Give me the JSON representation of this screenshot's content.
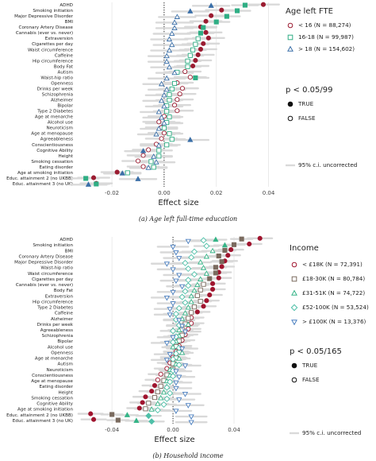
{
  "chart_data": [
    {
      "type": "dot",
      "caption": "(a) Age left full-time education",
      "x_label": "Effect size",
      "legend_title": "Age left FTE",
      "sig_title": "p < 0.05/99",
      "sig_labels": [
        "TRUE",
        "FALSE"
      ],
      "ci_label": "95% c.i. uncorrected",
      "xlim": [
        -0.034,
        0.045
      ],
      "xticks": [
        -0.02,
        {
          "value": 0,
          "label": "0.00"
        },
        0.02,
        0.04
      ],
      "grid": true,
      "zero_line": true,
      "categories": [
        "ADHD",
        "Smoking initiation",
        "Major Depressive Disorder",
        "BMI",
        "Coronary Artery Disease",
        "Cannabis (ever vs. never)",
        "Extraversion",
        "Cigarettes per day",
        "Waist circumference",
        "Caffeine",
        "Hip circumference",
        "Body Fat",
        "Autism",
        "Waist-hip ratio",
        "Openness",
        "Drinks per week",
        "Schizophrenia",
        "Alzheimer",
        "Bipolar",
        "Type 2 Diabetes",
        "Age at menarche",
        "Alcohol use",
        "Neuroticism",
        "Age at menopause",
        "Agreeableness",
        "Conscientiousness",
        "Cognitive Ability",
        "Height",
        "Smoking cessation",
        "Eating disorder",
        "Age at smoking initiation",
        "Educ. attainment 2 (no UKBB)",
        "Educ. attainment 3 (no UK)"
      ],
      "series": [
        {
          "name": "< 16 (N = 88,274)",
          "color": "#9b1c31",
          "marker": "circle",
          "error": 0.006,
          "values": [
            0.038,
            0.022,
            0.018,
            0.016,
            0.014,
            0.016,
            0.017,
            0.015,
            0.014,
            0.013,
            0.012,
            0.011,
            0.008,
            0.01,
            0.005,
            0.007,
            0.006,
            0.005,
            0.004,
            0.005,
            0.0,
            -0.002,
            -0.001,
            0.0,
            -0.001,
            -0.003,
            -0.006,
            -0.008,
            -0.01,
            -0.008,
            -0.018,
            -0.027,
            -0.026
          ],
          "significant": [
            true,
            true,
            true,
            true,
            true,
            true,
            true,
            true,
            true,
            true,
            true,
            true,
            false,
            false,
            false,
            false,
            false,
            false,
            false,
            false,
            false,
            false,
            false,
            false,
            false,
            false,
            false,
            false,
            false,
            false,
            true,
            true,
            true
          ]
        },
        {
          "name": "16-18 (N = 99,987)",
          "color": "#2fae84",
          "marker": "square",
          "error": 0.005,
          "values": [
            0.031,
            0.028,
            0.024,
            0.02,
            0.015,
            0.014,
            0.013,
            0.012,
            0.011,
            0.01,
            0.009,
            0.009,
            0.005,
            0.012,
            0.004,
            0.003,
            0.002,
            0.002,
            0.001,
            0.001,
            0.002,
            0.001,
            0.0,
            0.002,
            0.003,
            0.001,
            -0.002,
            -0.002,
            -0.005,
            -0.004,
            -0.014,
            -0.03,
            -0.026
          ],
          "significant": [
            true,
            true,
            true,
            true,
            true,
            true,
            false,
            false,
            false,
            false,
            false,
            false,
            false,
            true,
            false,
            false,
            false,
            false,
            false,
            false,
            false,
            false,
            false,
            false,
            false,
            false,
            false,
            false,
            false,
            false,
            false,
            true,
            true
          ]
        },
        {
          "name": "> 18 (N = 154,602)",
          "color": "#3a6fa8",
          "marker": "triangle-up",
          "error": 0.007,
          "values": [
            0.018,
            0.01,
            0.005,
            0.004,
            0.004,
            0.003,
            0.002,
            0.003,
            0.002,
            0.001,
            0.001,
            0.002,
            0.004,
            0.001,
            -0.001,
            0.001,
            0.0,
            -0.001,
            0.0,
            -0.002,
            -0.001,
            0.0,
            -0.002,
            -0.003,
            0.01,
            -0.002,
            -0.008,
            -0.004,
            -0.003,
            -0.006,
            -0.016,
            -0.01,
            -0.029
          ],
          "significant": [
            true,
            true,
            false,
            false,
            false,
            false,
            false,
            false,
            false,
            false,
            false,
            false,
            false,
            false,
            false,
            false,
            false,
            false,
            false,
            false,
            false,
            false,
            false,
            false,
            true,
            false,
            true,
            false,
            false,
            false,
            true,
            true,
            true
          ]
        }
      ]
    },
    {
      "type": "dot",
      "caption": "(b) Household income",
      "x_label": "Effect size",
      "legend_title": "Income",
      "sig_title": "p < 0.05/165",
      "sig_labels": [
        "TRUE",
        "FALSE"
      ],
      "ci_label": "95% c.i. uncorrected",
      "xlim": [
        -0.064,
        0.066
      ],
      "xticks": [
        -0.04,
        {
          "value": 0,
          "label": "0.00"
        },
        0.04
      ],
      "grid": true,
      "zero_line": true,
      "categories": [
        "ADHD",
        "Smoking initiation",
        "BMI",
        "Coronary Artery Disease",
        "Major Depressive Disorder",
        "Waist-hip ratio",
        "Waist circumference",
        "Cigarettes per day",
        "Cannabis (ever vs. never)",
        "Body Fat",
        "Extraversion",
        "Hip circumference",
        "Type 2 Diabetes",
        "Caffeine",
        "Alzheimer",
        "Drinks per week",
        "Agreeableness",
        "Schizophrenia",
        "Bipolar",
        "Alcohol use",
        "Openness",
        "Age at menarche",
        "Autism",
        "Neuroticism",
        "Conscientiousness",
        "Age at menopause",
        "Eating disorder",
        "Height",
        "Smoking cessation",
        "Cognitive Ability",
        "Age at smoking initiation",
        "Educ. attainment 2 (no UKBB)",
        "Educ. attainment 3 (no UK)"
      ],
      "series": [
        {
          "name": "< £18K (N = 72,391)",
          "color": "#a0142e",
          "marker": "circle",
          "error": 0.008,
          "values": [
            0.057,
            0.05,
            0.038,
            0.036,
            0.034,
            0.032,
            0.03,
            0.03,
            0.026,
            0.026,
            0.024,
            0.022,
            0.02,
            0.016,
            0.012,
            0.012,
            0.01,
            0.008,
            0.006,
            0.004,
            0.002,
            0.0,
            -0.002,
            -0.004,
            -0.008,
            -0.01,
            -0.012,
            -0.014,
            -0.018,
            -0.02,
            -0.022,
            -0.054,
            -0.052
          ],
          "significant": [
            true,
            true,
            true,
            true,
            true,
            true,
            true,
            true,
            true,
            true,
            true,
            true,
            true,
            true,
            false,
            false,
            false,
            false,
            false,
            false,
            false,
            false,
            false,
            false,
            false,
            false,
            true,
            true,
            true,
            true,
            true,
            true,
            true
          ]
        },
        {
          "name": "£18-30K (N = 80,784)",
          "color": "#7a6a5e",
          "marker": "square",
          "error": 0.007,
          "values": [
            0.045,
            0.04,
            0.034,
            0.03,
            0.032,
            0.028,
            0.028,
            0.024,
            0.02,
            0.018,
            0.016,
            0.018,
            0.014,
            0.012,
            0.01,
            0.008,
            0.006,
            0.006,
            0.004,
            0.002,
            0.004,
            0.002,
            0.0,
            0.0,
            -0.004,
            -0.006,
            -0.008,
            -0.01,
            -0.012,
            -0.016,
            -0.018,
            -0.04,
            -0.036
          ],
          "significant": [
            true,
            true,
            true,
            true,
            true,
            true,
            true,
            true,
            false,
            false,
            false,
            false,
            false,
            false,
            false,
            false,
            false,
            false,
            false,
            false,
            false,
            false,
            false,
            false,
            false,
            false,
            false,
            false,
            false,
            false,
            false,
            true,
            true
          ]
        },
        {
          "name": "£31-51K (N = 74,722)",
          "color": "#35b487",
          "marker": "triangle-up",
          "error": 0.007,
          "values": [
            0.028,
            0.034,
            0.026,
            0.022,
            0.018,
            0.02,
            0.022,
            0.018,
            0.016,
            0.014,
            0.012,
            0.012,
            0.01,
            0.008,
            0.006,
            0.01,
            0.004,
            0.004,
            0.002,
            0.0,
            0.006,
            0.004,
            0.002,
            -0.002,
            -0.002,
            -0.004,
            -0.004,
            -0.006,
            -0.008,
            -0.01,
            -0.014,
            -0.03,
            -0.024
          ],
          "significant": [
            true,
            true,
            false,
            false,
            false,
            false,
            false,
            false,
            false,
            false,
            false,
            false,
            false,
            false,
            false,
            false,
            false,
            false,
            false,
            false,
            false,
            false,
            false,
            false,
            false,
            false,
            false,
            false,
            false,
            false,
            false,
            true,
            true
          ]
        },
        {
          "name": "£52-100K (N = 53,524)",
          "color": "#4fc0a8",
          "marker": "diamond",
          "error": 0.008,
          "values": [
            0.02,
            0.022,
            0.014,
            0.012,
            0.008,
            0.01,
            0.014,
            0.01,
            0.01,
            0.008,
            0.006,
            0.008,
            0.004,
            0.002,
            0.002,
            0.004,
            0.0,
            0.002,
            0.0,
            0.004,
            0.002,
            0.0,
            0.004,
            0.0,
            0.0,
            -0.002,
            -0.004,
            -0.002,
            -0.004,
            -0.006,
            -0.01,
            -0.016,
            -0.014
          ],
          "significant": [
            false,
            false,
            false,
            false,
            false,
            false,
            false,
            false,
            false,
            false,
            false,
            false,
            false,
            false,
            false,
            false,
            false,
            false,
            false,
            false,
            false,
            false,
            false,
            false,
            false,
            false,
            false,
            false,
            false,
            false,
            false,
            true,
            true
          ]
        },
        {
          "name": "> £100K (N = 13,376)",
          "color": "#4a7fc0",
          "marker": "triangle-down",
          "error": 0.01,
          "values": [
            0.01,
            0.0,
            0.002,
            0.004,
            -0.004,
            0.0,
            0.004,
            0.002,
            0.006,
            0.0,
            -0.004,
            0.0,
            -0.002,
            -0.002,
            0.004,
            0.006,
            0.008,
            0.0,
            -0.004,
            0.006,
            -0.002,
            -0.004,
            0.008,
            0.002,
            0.004,
            0.002,
            0.002,
            0.008,
            0.004,
            0.01,
            0.002,
            0.012,
            0.012
          ],
          "significant": [
            false,
            false,
            false,
            false,
            false,
            false,
            false,
            false,
            false,
            false,
            false,
            false,
            false,
            false,
            false,
            false,
            false,
            false,
            false,
            false,
            false,
            false,
            false,
            false,
            false,
            false,
            false,
            false,
            false,
            false,
            false,
            false,
            false
          ]
        }
      ]
    }
  ]
}
